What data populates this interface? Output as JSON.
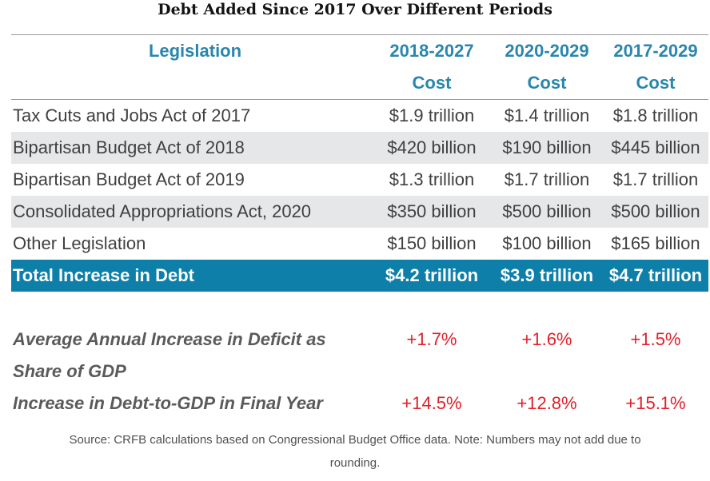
{
  "title": "Debt Added Since 2017 Over Different Periods",
  "header": {
    "legislation": "Legislation",
    "columns": [
      {
        "period": "2018-2027",
        "label": "Cost"
      },
      {
        "period": "2020-2029",
        "label": "Cost"
      },
      {
        "period": "2017-2029",
        "label": "Cost"
      }
    ]
  },
  "rows": [
    {
      "name": "Tax Cuts and Jobs Act of 2017",
      "values": [
        "$1.9 trillion",
        "$1.4 trillion",
        "$1.8 trillion"
      ]
    },
    {
      "name": "Bipartisan Budget Act of 2018",
      "values": [
        "$420 billion",
        "$190 billion",
        "$445 billion"
      ]
    },
    {
      "name": "Bipartisan Budget Act of 2019",
      "values": [
        "$1.3 trillion",
        "$1.7 trillion",
        "$1.7 trillion"
      ]
    },
    {
      "name": "Consolidated Appropriations Act, 2020",
      "values": [
        "$350 billion",
        "$500 billion",
        "$500 billion"
      ]
    },
    {
      "name": "Other Legislation",
      "values": [
        "$150 billion",
        "$100 billion",
        "$165 billion"
      ]
    }
  ],
  "total": {
    "name": "Total Increase in Debt",
    "values": [
      "$4.2 trillion",
      "$3.9 trillion",
      "$4.7 trillion"
    ]
  },
  "metrics": [
    {
      "line1": "Average Annual Increase in Deficit as",
      "line2": "Share of GDP",
      "values": [
        "+1.7%",
        "+1.6%",
        "+1.5%"
      ]
    },
    {
      "line1": "Increase in Debt-to-GDP in Final Year",
      "values": [
        "+14.5%",
        "+12.8%",
        "+15.1%"
      ]
    }
  ],
  "source": {
    "line1": "Source: CRFB calculations based on Congressional Budget Office data. Note: Numbers may not add due to",
    "line2": "rounding."
  },
  "colors": {
    "header_text": "#2a86ad",
    "total_bg": "#0d7fa9",
    "shaded_row": "#e6e7e9",
    "metric_value": "#e0202a"
  }
}
